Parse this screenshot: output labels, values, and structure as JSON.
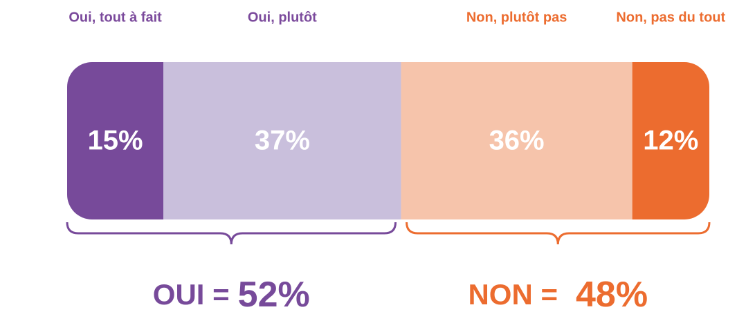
{
  "chart_data": {
    "type": "stacked_bar",
    "categories": [
      "Oui, tout à fait",
      "Oui, plutôt",
      "Non, plutôt pas",
      "Non, pas du tout"
    ],
    "values": [
      15,
      37,
      36,
      12
    ],
    "value_labels": [
      "15%",
      "37%",
      "36%",
      "12%"
    ],
    "colors": [
      "#774a9a",
      "#c9bfdc",
      "#f6c4ab",
      "#ec6c2f"
    ],
    "label_colors": [
      "#7b4a9c",
      "#7b4a9c",
      "#ec6c2f",
      "#ec6c2f"
    ],
    "groups": [
      {
        "label": "OUI =",
        "total_label": "52%",
        "color": "#774a9a"
      },
      {
        "label": "NON =",
        "total_label": "48%",
        "color": "#ec6c2f"
      }
    ]
  }
}
